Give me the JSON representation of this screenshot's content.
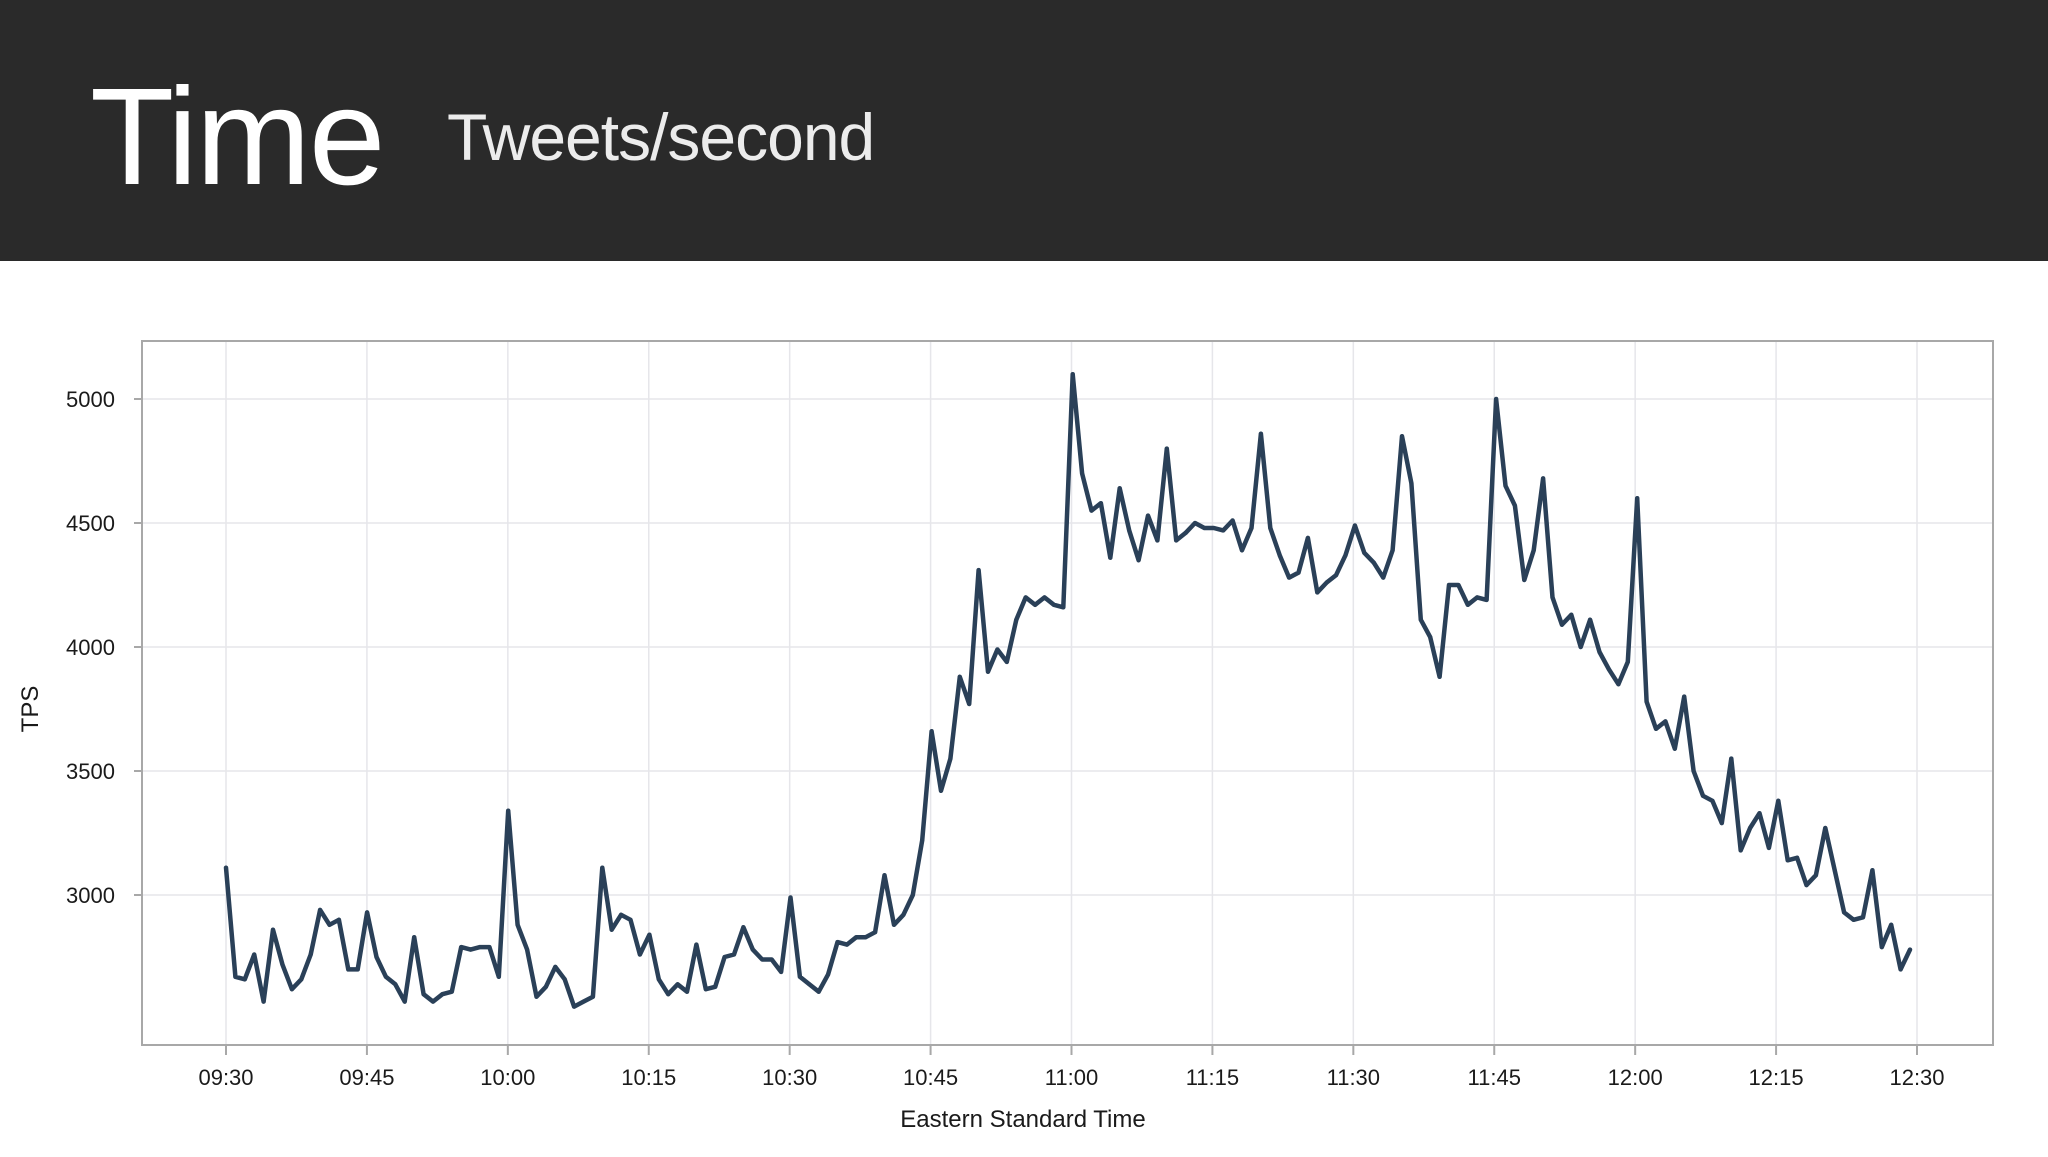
{
  "slide": {
    "title": "Time",
    "subtitle": "Tweets/second"
  },
  "colors": {
    "header_bg": "#2a2a2a",
    "line": "#2a4058",
    "grid": "#e6e6ea",
    "frame": "#a8a8a8"
  },
  "chart_data": {
    "type": "line",
    "xlabel": "Eastern Standard Time",
    "ylabel": "TPS",
    "x_ticks": [
      "09:30",
      "09:45",
      "10:00",
      "10:15",
      "10:30",
      "10:45",
      "11:00",
      "11:15",
      "11:30",
      "11:45",
      "12:00",
      "12:15",
      "12:30"
    ],
    "y_ticks": [
      3000,
      3500,
      4000,
      4500,
      5000
    ],
    "xlim": [
      "09:30",
      "12:30"
    ],
    "ylim": [
      2400,
      5230
    ],
    "grid": true,
    "series": [
      {
        "values": [
          3110,
          2670,
          2660,
          2760,
          2570,
          2860,
          2720,
          2620,
          2660,
          2760,
          2940,
          2880,
          2900,
          2700,
          2700,
          2930,
          2750,
          2670,
          2640,
          2570,
          2830,
          2600,
          2570,
          2600,
          2610,
          2790,
          2780,
          2790,
          2790,
          2670,
          3340,
          2880,
          2780,
          2590,
          2630,
          2710,
          2660,
          2550,
          2570,
          2590,
          3110,
          2860,
          2920,
          2900,
          2760,
          2840,
          2660,
          2600,
          2640,
          2610,
          2800,
          2620,
          2630,
          2750,
          2760,
          2870,
          2780,
          2740,
          2740,
          2690,
          2990,
          2670,
          2640,
          2610,
          2680,
          2810,
          2800,
          2830,
          2830,
          2850,
          3080,
          2880,
          2920,
          3000,
          3220,
          3660,
          3420,
          3550,
          3880,
          3770,
          4310,
          3900,
          3990,
          3940,
          4110,
          4200,
          4170,
          4200,
          4170,
          4160,
          5100,
          4700,
          4550,
          4580,
          4360,
          4640,
          4470,
          4350,
          4530,
          4430,
          4800,
          4430,
          4460,
          4500,
          4480,
          4480,
          4470,
          4510,
          4390,
          4480,
          4860,
          4480,
          4370,
          4280,
          4300,
          4440,
          4220,
          4260,
          4290,
          4370,
          4490,
          4380,
          4340,
          4280,
          4390,
          4850,
          4660,
          4110,
          4040,
          3880,
          4250,
          4250,
          4170,
          4200,
          4190,
          5000,
          4650,
          4570,
          4270,
          4390,
          4680,
          4200,
          4090,
          4130,
          4000,
          4110,
          3980,
          3910,
          3850,
          3940,
          4600,
          3780,
          3670,
          3700,
          3590,
          3800,
          3500,
          3400,
          3380,
          3290,
          3550,
          3180,
          3270,
          3330,
          3190,
          3380,
          3140,
          3150,
          3040,
          3080,
          3270,
          3100,
          2930,
          2900,
          2910,
          3100,
          2790,
          2880,
          2700,
          2780
        ]
      }
    ]
  }
}
